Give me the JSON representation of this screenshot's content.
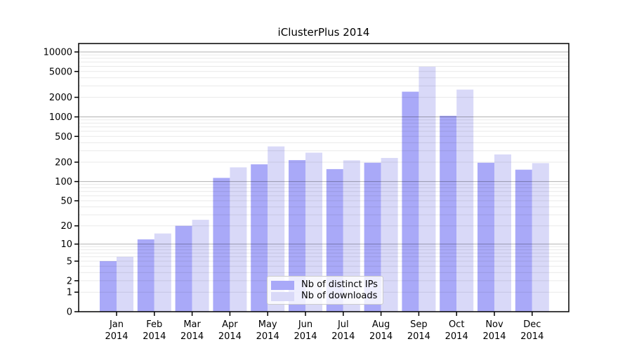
{
  "figure": {
    "title": "iClusterPlus 2014",
    "background": "#ffffff"
  },
  "chart_data": {
    "type": "bar",
    "title": "iClusterPlus 2014",
    "xlabel": "",
    "ylabel": "",
    "categories": [
      "Jan 2014",
      "Feb 2014",
      "Mar 2014",
      "Apr 2014",
      "May 2014",
      "Jun 2014",
      "Jul 2014",
      "Aug 2014",
      "Sep 2014",
      "Oct 2014",
      "Nov 2014",
      "Dec 2014"
    ],
    "series": [
      {
        "name": "Nb of distinct IPs",
        "color": "#a9a9f8",
        "values": [
          5,
          12,
          20,
          114,
          185,
          215,
          156,
          196,
          2440,
          1040,
          196,
          153
        ]
      },
      {
        "name": "Nb of downloads",
        "color": "#d9d9f8",
        "values": [
          6,
          15,
          25,
          166,
          350,
          280,
          213,
          232,
          5930,
          2630,
          263,
          193
        ]
      }
    ],
    "yscale": "log1p",
    "ylim": [
      0,
      10000
    ],
    "ytick_labels": [
      0,
      1,
      2,
      5,
      10,
      20,
      50,
      100,
      200,
      500,
      1000,
      2000,
      5000,
      10000
    ],
    "grid": "horizontal major (powers of 10, gray) + minor (2-9 per decade, light gray)",
    "legend_position": "inside bottom-center",
    "colors": {
      "bar_dark": "#a9a9f8",
      "bar_light": "#d9d9f8",
      "major_grid": "#adadad",
      "minor_grid": "#e8e8e8",
      "axis": "#000000",
      "text": "#000000"
    }
  },
  "legend": {
    "items": [
      {
        "label": "Nb of distinct IPs",
        "color": "#a9a9f8"
      },
      {
        "label": "Nb of downloads",
        "color": "#d9d9f8"
      }
    ]
  }
}
